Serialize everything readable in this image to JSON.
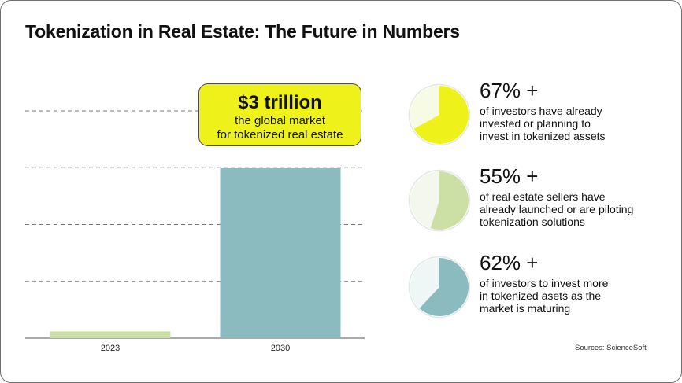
{
  "title": "Tokenization in Real Estate: The Future in Numbers",
  "callout": {
    "value": "$3 trillion",
    "line1": "the global market",
    "line2": "for tokenized real estate"
  },
  "chart_data": {
    "type": "bar",
    "categories": [
      "2023",
      "2030"
    ],
    "values": [
      0.12,
      3.0
    ],
    "ylim": [
      0,
      4
    ],
    "colors": [
      "#cce0a6",
      "#8bbbbe"
    ],
    "grid": true,
    "ylabel": "",
    "xlabel": "",
    "annotations": [
      "$3 trillion"
    ]
  },
  "stats": [
    {
      "value": "67% +",
      "desc_lines": [
        "of investors have already",
        "invested or planning to",
        "invest in tokenized assets"
      ],
      "fraction": 0.67,
      "fill": "#eef21a",
      "bg": "#f8fbe4"
    },
    {
      "value": "55% +",
      "desc_lines": [
        "of real estate sellers have",
        "already launched or are piloting",
        "tokenization solutions"
      ],
      "fraction": 0.55,
      "fill": "#cce0a6",
      "bg": "#f3f7ee"
    },
    {
      "value": "62% +",
      "desc_lines": [
        "of investors to invest more",
        "in tokenized asets as the",
        "market is maturing"
      ],
      "fraction": 0.62,
      "fill": "#8bbbbe",
      "bg": "#eef6f6"
    }
  ],
  "sources": "Sources:  ScienceSoft"
}
